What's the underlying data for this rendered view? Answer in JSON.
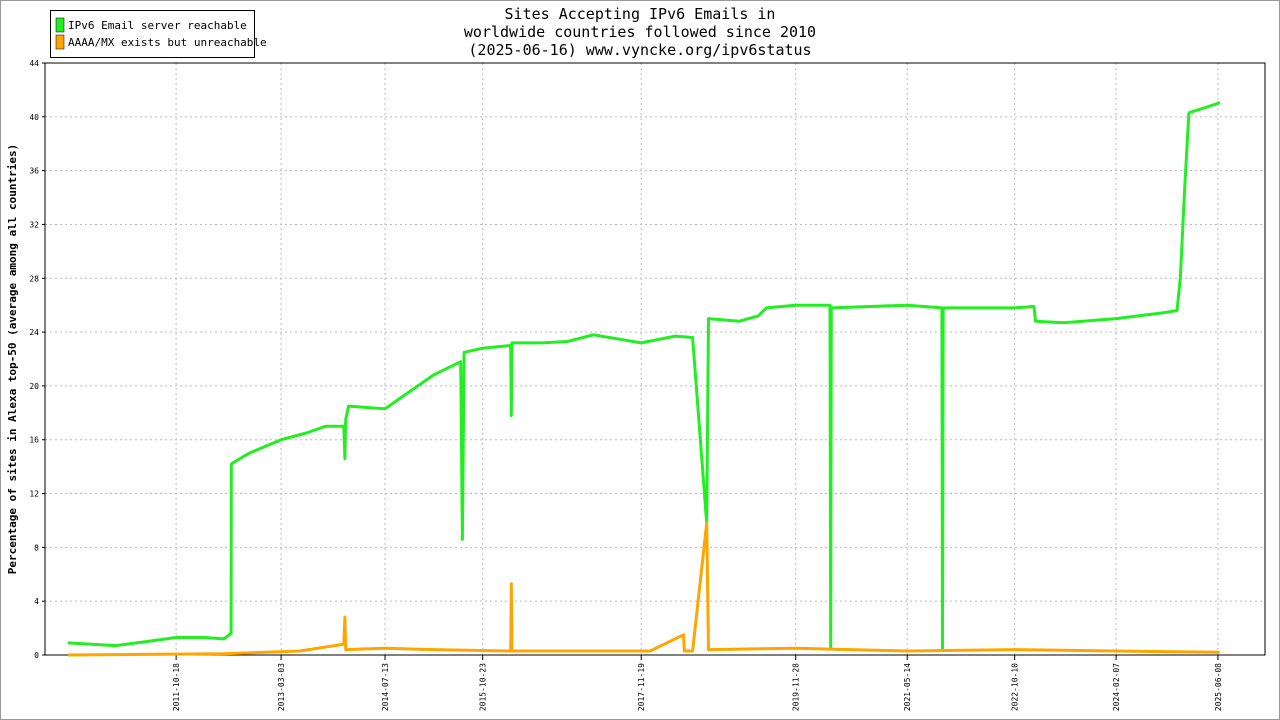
{
  "chart_data": {
    "type": "line",
    "title": [
      "Sites Accepting IPv6 Emails in",
      "worldwide countries followed since 2010",
      "(2025-06-16) www.vyncke.org/ipv6status"
    ],
    "y_label": "Percentage of sites in Alexa top-50 (average among all countries)",
    "xlim": [
      "2010-01-29",
      "2026-01-19"
    ],
    "xticks": [
      "2011-10-18",
      "2013-03-03",
      "2014-07-13",
      "2015-10-23",
      "2017-11-19",
      "2019-11-28",
      "2021-05-14",
      "2022-10-10",
      "2024-02-07",
      "2025-06-08"
    ],
    "ylim": [
      0,
      44
    ],
    "yticks": [
      0,
      4,
      8,
      12,
      16,
      20,
      24,
      28,
      32,
      36,
      40,
      44
    ],
    "grid": true,
    "legend": "top-left",
    "series": [
      {
        "name": "IPv6 Email server reachable",
        "color": "#22ee22",
        "x": [
          "2010-05-19",
          "2011-01-01",
          "2011-06-01",
          "2011-10-18",
          "2012-03-01",
          "2012-06-01",
          "2012-07-07",
          "2012-07-08",
          "2012-10-01",
          "2013-03-03",
          "2013-07-01",
          "2013-10-01",
          "2013-12-28",
          "2014-01-02",
          "2014-01-06",
          "2014-01-20",
          "2014-07-13",
          "2014-11-01",
          "2015-03-01",
          "2015-07-10",
          "2015-07-18",
          "2015-07-26",
          "2015-10-23",
          "2016-03-05",
          "2016-03-08",
          "2016-03-11",
          "2016-08-01",
          "2016-12-01",
          "2017-04-05",
          "2017-11-19",
          "2018-05-01",
          "2018-07-23",
          "2018-09-28",
          "2018-10-07",
          "2019-03-01",
          "2019-06-01",
          "2019-07-11",
          "2019-11-28",
          "2020-05-10",
          "2020-05-13",
          "2020-05-16",
          "2021-05-14",
          "2021-10-27",
          "2021-10-30",
          "2021-11-02",
          "2022-10-10",
          "2023-01-10",
          "2023-01-18",
          "2023-06-01",
          "2024-02-07",
          "2024-09-01",
          "2024-11-24",
          "2024-12-10",
          "2025-01-01",
          "2025-01-20",
          "2025-06-08",
          "2025-06-16"
        ],
        "values": [
          0.9,
          0.7,
          1.0,
          1.3,
          1.3,
          1.2,
          1.6,
          14.2,
          15.0,
          16.0,
          16.5,
          17.0,
          17.0,
          14.6,
          17.5,
          18.5,
          18.3,
          19.5,
          20.8,
          21.8,
          8.6,
          22.5,
          22.8,
          23.0,
          17.8,
          23.2,
          23.2,
          23.3,
          23.8,
          23.2,
          23.7,
          23.6,
          9.8,
          25.0,
          24.8,
          25.2,
          25.8,
          26.0,
          26.0,
          0.5,
          25.8,
          26.0,
          25.8,
          0.5,
          25.8,
          25.8,
          25.9,
          24.8,
          24.7,
          25.0,
          25.4,
          25.6,
          28,
          35,
          40.3,
          41.0,
          41.1
        ]
      },
      {
        "name": "AAAA/MX exists but unreachable",
        "color": "#ffa500",
        "x": [
          "2010-05-19",
          "2012-06-01",
          "2013-06-01",
          "2013-12-28",
          "2014-01-02",
          "2014-01-06",
          "2014-07-13",
          "2015-03-01",
          "2016-03-05",
          "2016-03-08",
          "2016-03-11",
          "2017-04-05",
          "2018-01-01",
          "2018-06-10",
          "2018-06-13",
          "2018-07-23",
          "2018-09-28",
          "2018-10-07",
          "2019-11-28",
          "2021-05-14",
          "2022-10-10",
          "2024-02-07",
          "2025-06-16"
        ],
        "values": [
          0,
          0.1,
          0.3,
          0.8,
          2.8,
          0.4,
          0.5,
          0.4,
          0.3,
          5.3,
          0.3,
          0.3,
          0.3,
          1.5,
          0.3,
          0.3,
          9.8,
          0.4,
          0.5,
          0.3,
          0.4,
          0.3,
          0.2
        ]
      }
    ]
  }
}
